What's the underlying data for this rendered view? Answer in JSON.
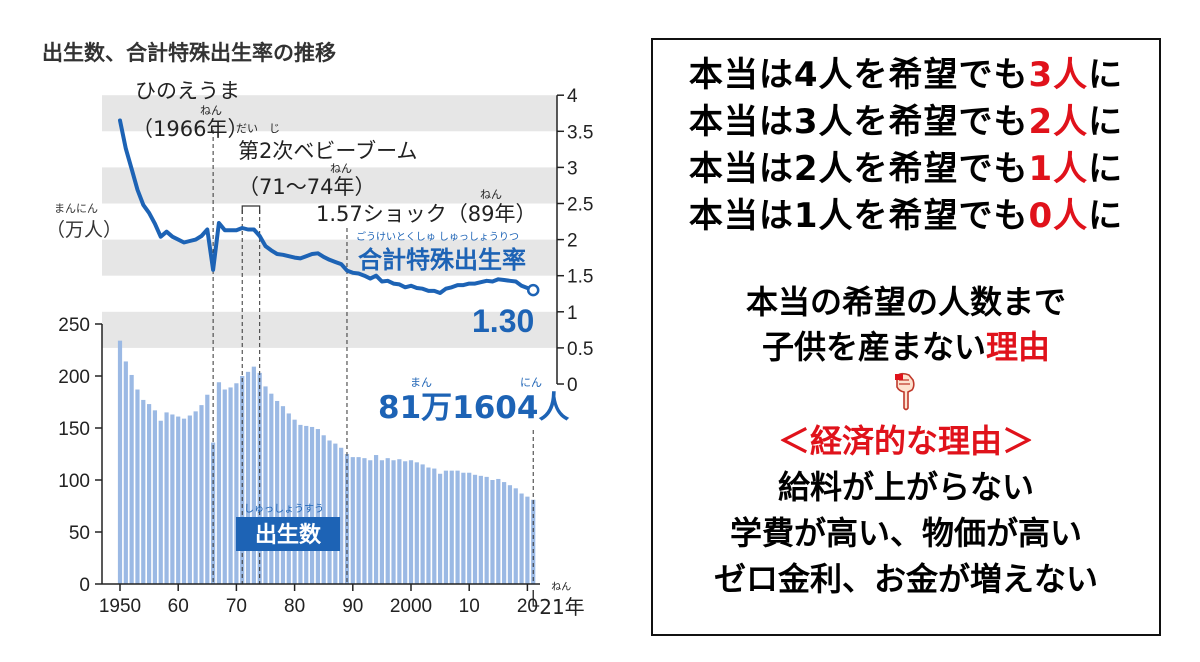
{
  "chart_data": {
    "type": "bar+line",
    "title": "出生数、合計特殊出生率の推移",
    "left_axis": {
      "unit_ruby": "まんにん",
      "unit": "（万人）",
      "ticks": [
        0,
        50,
        100,
        150,
        200,
        250
      ],
      "ylim": [
        0,
        250
      ]
    },
    "right_axis": {
      "ticks": [
        0,
        0.5,
        1,
        1.5,
        2,
        2.5,
        3,
        3.5,
        4
      ],
      "tick_labels": [
        "0",
        "0.5",
        "1",
        "1.5",
        "2",
        "2.5",
        "3",
        "3.5",
        "4"
      ],
      "ylim": [
        0,
        4
      ]
    },
    "x_axis": {
      "ticks": [
        1950,
        1960,
        1970,
        1980,
        1990,
        2000,
        2010,
        2020
      ],
      "tick_labels": [
        "1950",
        "60",
        "70",
        "80",
        "90",
        "2000",
        "10",
        "20"
      ],
      "end_label": "21年",
      "end_ruby": "ねん"
    },
    "years": [
      1950,
      1951,
      1952,
      1953,
      1954,
      1955,
      1956,
      1957,
      1958,
      1959,
      1960,
      1961,
      1962,
      1963,
      1964,
      1965,
      1966,
      1967,
      1968,
      1969,
      1970,
      1971,
      1972,
      1973,
      1974,
      1975,
      1976,
      1977,
      1978,
      1979,
      1980,
      1981,
      1982,
      1983,
      1984,
      1985,
      1986,
      1987,
      1988,
      1989,
      1990,
      1991,
      1992,
      1993,
      1994,
      1995,
      1996,
      1997,
      1998,
      1999,
      2000,
      2001,
      2002,
      2003,
      2004,
      2005,
      2006,
      2007,
      2008,
      2009,
      2010,
      2011,
      2012,
      2013,
      2014,
      2015,
      2016,
      2017,
      2018,
      2019,
      2020,
      2021
    ],
    "series": [
      {
        "name": "出生数",
        "ruby": "しゅっしょうすう",
        "type": "bar",
        "axis": "left",
        "color": "#9bb9e4",
        "values": [
          234,
          214,
          201,
          187,
          177,
          173,
          167,
          157,
          165,
          163,
          161,
          159,
          162,
          166,
          172,
          182,
          136,
          194,
          187,
          189,
          193,
          200,
          204,
          209,
          203,
          190,
          183,
          176,
          171,
          164,
          158,
          153,
          152,
          151,
          149,
          143,
          138,
          135,
          131,
          125,
          122,
          122,
          121,
          119,
          124,
          119,
          121,
          119,
          120,
          118,
          119,
          117,
          115,
          112,
          111,
          106,
          109,
          109,
          109,
          107,
          107,
          105,
          104,
          103,
          100,
          101,
          98,
          95,
          92,
          87,
          84,
          81
        ]
      },
      {
        "name": "合計特殊出生率",
        "ruby": "ごうけいとくしゅしゅっしょうりつ",
        "type": "line",
        "axis": "right",
        "color": "#1d63b5",
        "values": [
          3.65,
          3.26,
          2.98,
          2.69,
          2.48,
          2.37,
          2.22,
          2.04,
          2.11,
          2.04,
          2.0,
          1.96,
          1.98,
          2.0,
          2.05,
          2.14,
          1.58,
          2.23,
          2.13,
          2.13,
          2.13,
          2.16,
          2.14,
          2.14,
          2.05,
          1.91,
          1.85,
          1.8,
          1.79,
          1.77,
          1.75,
          1.74,
          1.77,
          1.8,
          1.81,
          1.76,
          1.72,
          1.69,
          1.66,
          1.57,
          1.54,
          1.53,
          1.5,
          1.46,
          1.5,
          1.42,
          1.43,
          1.39,
          1.38,
          1.34,
          1.36,
          1.33,
          1.32,
          1.29,
          1.29,
          1.26,
          1.32,
          1.34,
          1.37,
          1.37,
          1.39,
          1.39,
          1.41,
          1.43,
          1.42,
          1.45,
          1.44,
          1.43,
          1.42,
          1.36,
          1.33,
          1.3
        ]
      }
    ],
    "annotations": {
      "hinoeuma": {
        "line1": "ひのえうま",
        "ruby": "ねん",
        "line2": "（1966年）",
        "extra_ruby": "だい　じ"
      },
      "boom": {
        "line1": "第2次ベビーブーム",
        "ruby": "ねん",
        "line2": "（71〜74年）"
      },
      "shock": {
        "text": "1.57ショック（89年）",
        "ruby": "ねん"
      },
      "rate_label": "合計特殊出生率",
      "rate_ruby": "ごうけいとくしゅ しゅっしょうりつ",
      "rate_final": "1.30",
      "births_final": "81万1604人",
      "births_ruby_man": "まん",
      "births_ruby_nin": "にん",
      "births_label": "出生数",
      "births_label_ruby": "しゅっしょうすう"
    }
  },
  "panel": {
    "wish_lines": [
      {
        "pre": "本当は4人を希望でも",
        "red": "3人",
        "post": "に"
      },
      {
        "pre": "本当は3人を希望でも",
        "red": "2人",
        "post": "に"
      },
      {
        "pre": "本当は2人を希望でも",
        "red": "1人",
        "post": "に"
      },
      {
        "pre": "本当は1人を希望でも",
        "red": "0人",
        "post": "に"
      }
    ],
    "reason_line1": "本当の希望の人数まで",
    "reason_line2_pre": "子供を産まない",
    "reason_line2_red": "理由",
    "pointer_icon": "pointing-down-hand-icon",
    "econ_title": "＜経済的な理由＞",
    "econ_lines": [
      "給料が上がらない",
      "学費が高い、物価が高い",
      "ゼロ金利、お金が増えない"
    ],
    "accent_color": "#e0121b"
  }
}
